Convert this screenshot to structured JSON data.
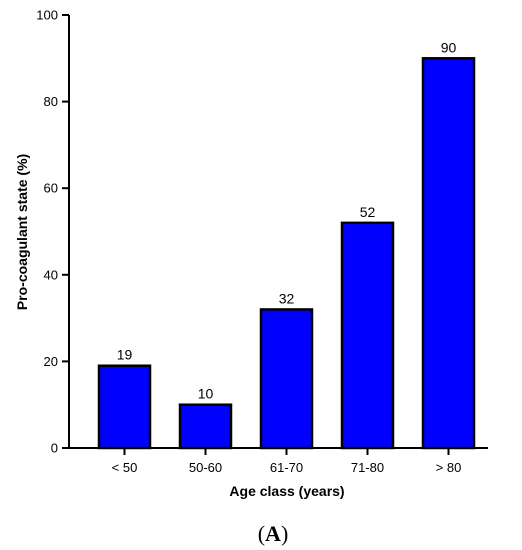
{
  "chart_data": {
    "type": "bar",
    "title": "",
    "xlabel": "Age class (years)",
    "ylabel": "Pro-coagulant state (%)",
    "categories": [
      "< 50",
      "50-60",
      "61-70",
      "71-80",
      "> 80"
    ],
    "values": [
      19,
      10,
      32,
      52,
      90
    ],
    "data_labels": [
      "19",
      "10",
      "32",
      "52",
      "90"
    ],
    "ylim": [
      0,
      100
    ],
    "yticks": [
      0,
      20,
      40,
      60,
      80,
      100
    ],
    "grid": false,
    "bar_color": "#0000ff",
    "bar_edge_color": "#000000"
  },
  "panel_label": {
    "open": "(",
    "letter": "A",
    "close": ")"
  }
}
